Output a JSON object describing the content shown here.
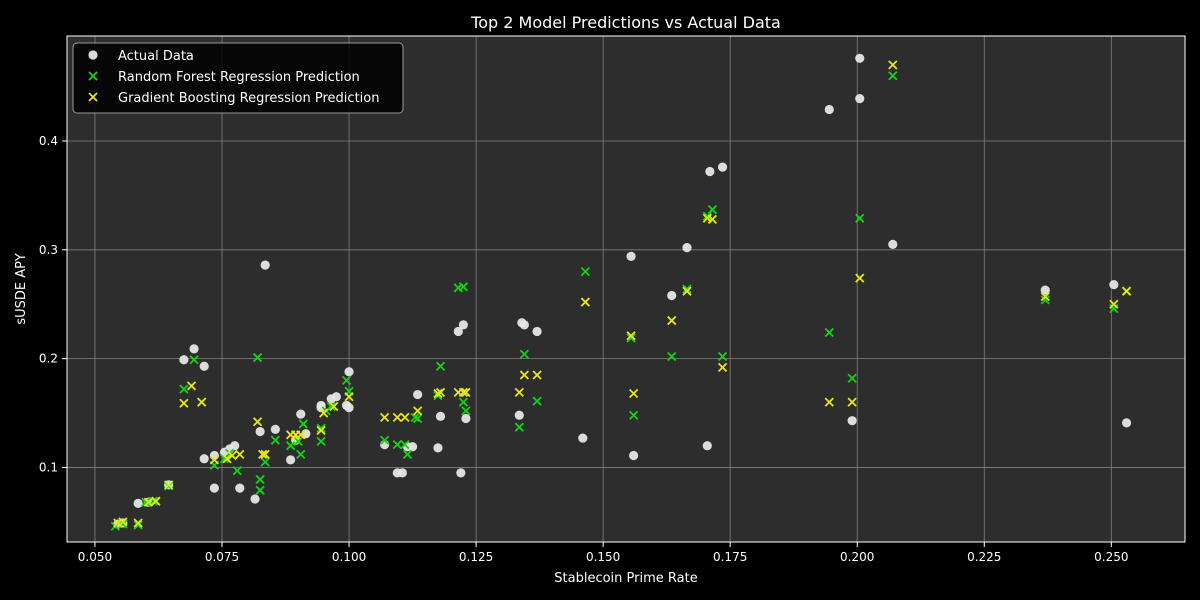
{
  "chart_data": {
    "type": "scatter",
    "title": "Top 2 Model Predictions vs Actual Data",
    "xlabel": "Stablecoin Prime Rate",
    "ylabel": "sUSDE APY",
    "xlim": [
      0.0445,
      0.2645
    ],
    "ylim": [
      0.0315,
      0.4965
    ],
    "xticks": [
      0.05,
      0.075,
      0.1,
      0.125,
      0.15,
      0.175,
      0.2,
      0.225,
      0.25
    ],
    "xtick_labels": [
      "0.050",
      "0.075",
      "0.100",
      "0.125",
      "0.150",
      "0.175",
      "0.200",
      "0.225",
      "0.250"
    ],
    "yticks": [
      0.1,
      0.2,
      0.3,
      0.4
    ],
    "ytick_labels": [
      "0.1",
      "0.2",
      "0.3",
      "0.4"
    ],
    "grid": true,
    "legend_position": "top-left",
    "colors": {
      "background": "#000000",
      "plot_background": "#2d2d2d",
      "grid": "#8a8a8a",
      "text": "#ffffff"
    },
    "series": [
      {
        "name": "Actual Data",
        "marker": "circle",
        "color": "#e6e6e6",
        "points": [
          [
            0.0545,
            0.048
          ],
          [
            0.0555,
            0.049
          ],
          [
            0.0585,
            0.067
          ],
          [
            0.0605,
            0.068
          ],
          [
            0.0645,
            0.084
          ],
          [
            0.0675,
            0.199
          ],
          [
            0.0695,
            0.209
          ],
          [
            0.0715,
            0.193
          ],
          [
            0.0715,
            0.108
          ],
          [
            0.0735,
            0.111
          ],
          [
            0.0735,
            0.081
          ],
          [
            0.0755,
            0.114
          ],
          [
            0.0765,
            0.117
          ],
          [
            0.0775,
            0.12
          ],
          [
            0.0785,
            0.081
          ],
          [
            0.0815,
            0.071
          ],
          [
            0.0825,
            0.133
          ],
          [
            0.0835,
            0.286
          ],
          [
            0.0855,
            0.135
          ],
          [
            0.0885,
            0.107
          ],
          [
            0.0895,
            0.125
          ],
          [
            0.0905,
            0.149
          ],
          [
            0.0915,
            0.131
          ],
          [
            0.0945,
            0.157
          ],
          [
            0.0945,
            0.155
          ],
          [
            0.0965,
            0.163
          ],
          [
            0.0975,
            0.165
          ],
          [
            0.0995,
            0.157
          ],
          [
            0.1,
            0.188
          ],
          [
            0.1,
            0.155
          ],
          [
            0.107,
            0.121
          ],
          [
            0.1095,
            0.095
          ],
          [
            0.1105,
            0.095
          ],
          [
            0.1115,
            0.119
          ],
          [
            0.1125,
            0.119
          ],
          [
            0.1135,
            0.167
          ],
          [
            0.1175,
            0.118
          ],
          [
            0.118,
            0.147
          ],
          [
            0.1215,
            0.225
          ],
          [
            0.122,
            0.095
          ],
          [
            0.1225,
            0.231
          ],
          [
            0.123,
            0.145
          ],
          [
            0.1335,
            0.148
          ],
          [
            0.134,
            0.233
          ],
          [
            0.1345,
            0.231
          ],
          [
            0.137,
            0.225
          ],
          [
            0.146,
            0.127
          ],
          [
            0.1555,
            0.294
          ],
          [
            0.156,
            0.111
          ],
          [
            0.1635,
            0.258
          ],
          [
            0.1665,
            0.302
          ],
          [
            0.1705,
            0.12
          ],
          [
            0.171,
            0.372
          ],
          [
            0.1735,
            0.376
          ],
          [
            0.1945,
            0.429
          ],
          [
            0.199,
            0.143
          ],
          [
            0.2005,
            0.476
          ],
          [
            0.2005,
            0.439
          ],
          [
            0.207,
            0.305
          ],
          [
            0.237,
            0.263
          ],
          [
            0.2505,
            0.268
          ],
          [
            0.253,
            0.141
          ]
        ]
      },
      {
        "name": "Random Forest Regression Prediction",
        "marker": "x",
        "color": "#14d214",
        "points": [
          [
            0.054,
            0.046
          ],
          [
            0.0555,
            0.048
          ],
          [
            0.0585,
            0.047
          ],
          [
            0.06,
            0.068
          ],
          [
            0.0615,
            0.069
          ],
          [
            0.0645,
            0.083
          ],
          [
            0.0675,
            0.172
          ],
          [
            0.0695,
            0.199
          ],
          [
            0.071,
            0.16
          ],
          [
            0.0735,
            0.102
          ],
          [
            0.0755,
            0.108
          ],
          [
            0.0765,
            0.113
          ],
          [
            0.078,
            0.097
          ],
          [
            0.082,
            0.201
          ],
          [
            0.0825,
            0.089
          ],
          [
            0.0825,
            0.079
          ],
          [
            0.0835,
            0.105
          ],
          [
            0.0855,
            0.125
          ],
          [
            0.0885,
            0.12
          ],
          [
            0.09,
            0.124
          ],
          [
            0.0905,
            0.112
          ],
          [
            0.091,
            0.14
          ],
          [
            0.0945,
            0.124
          ],
          [
            0.0945,
            0.136
          ],
          [
            0.0955,
            0.152
          ],
          [
            0.0965,
            0.156
          ],
          [
            0.0995,
            0.18
          ],
          [
            0.1,
            0.17
          ],
          [
            0.107,
            0.125
          ],
          [
            0.1095,
            0.121
          ],
          [
            0.111,
            0.121
          ],
          [
            0.1115,
            0.112
          ],
          [
            0.113,
            0.146
          ],
          [
            0.1135,
            0.145
          ],
          [
            0.1175,
            0.166
          ],
          [
            0.118,
            0.193
          ],
          [
            0.1215,
            0.265
          ],
          [
            0.1225,
            0.266
          ],
          [
            0.1225,
            0.16
          ],
          [
            0.123,
            0.152
          ],
          [
            0.1335,
            0.137
          ],
          [
            0.1345,
            0.204
          ],
          [
            0.137,
            0.161
          ],
          [
            0.1465,
            0.28
          ],
          [
            0.1555,
            0.219
          ],
          [
            0.156,
            0.148
          ],
          [
            0.1635,
            0.202
          ],
          [
            0.1665,
            0.264
          ],
          [
            0.1705,
            0.331
          ],
          [
            0.1715,
            0.337
          ],
          [
            0.1735,
            0.202
          ],
          [
            0.1945,
            0.224
          ],
          [
            0.199,
            0.182
          ],
          [
            0.2005,
            0.329
          ],
          [
            0.207,
            0.46
          ],
          [
            0.237,
            0.254
          ],
          [
            0.2505,
            0.246
          ],
          [
            0.253,
            0.262
          ]
        ]
      },
      {
        "name": "Gradient Boosting Regression Prediction",
        "marker": "x",
        "color": "#e6e61e",
        "points": [
          [
            0.0545,
            0.049
          ],
          [
            0.0555,
            0.05
          ],
          [
            0.0585,
            0.049
          ],
          [
            0.0605,
            0.068
          ],
          [
            0.062,
            0.069
          ],
          [
            0.0645,
            0.084
          ],
          [
            0.0675,
            0.159
          ],
          [
            0.069,
            0.175
          ],
          [
            0.071,
            0.16
          ],
          [
            0.0735,
            0.107
          ],
          [
            0.076,
            0.108
          ],
          [
            0.077,
            0.111
          ],
          [
            0.0785,
            0.112
          ],
          [
            0.082,
            0.142
          ],
          [
            0.083,
            0.112
          ],
          [
            0.0835,
            0.112
          ],
          [
            0.0885,
            0.13
          ],
          [
            0.0895,
            0.13
          ],
          [
            0.0905,
            0.13
          ],
          [
            0.0945,
            0.134
          ],
          [
            0.095,
            0.15
          ],
          [
            0.097,
            0.156
          ],
          [
            0.1,
            0.165
          ],
          [
            0.107,
            0.146
          ],
          [
            0.1095,
            0.146
          ],
          [
            0.111,
            0.146
          ],
          [
            0.1135,
            0.152
          ],
          [
            0.1175,
            0.168
          ],
          [
            0.118,
            0.169
          ],
          [
            0.1215,
            0.169
          ],
          [
            0.1225,
            0.169
          ],
          [
            0.123,
            0.169
          ],
          [
            0.1335,
            0.169
          ],
          [
            0.1345,
            0.185
          ],
          [
            0.137,
            0.185
          ],
          [
            0.1465,
            0.252
          ],
          [
            0.1555,
            0.221
          ],
          [
            0.156,
            0.168
          ],
          [
            0.1635,
            0.235
          ],
          [
            0.1665,
            0.262
          ],
          [
            0.1705,
            0.329
          ],
          [
            0.1715,
            0.328
          ],
          [
            0.1735,
            0.192
          ],
          [
            0.1945,
            0.16
          ],
          [
            0.199,
            0.16
          ],
          [
            0.2005,
            0.274
          ],
          [
            0.207,
            0.47
          ],
          [
            0.237,
            0.257
          ],
          [
            0.2505,
            0.25
          ],
          [
            0.253,
            0.262
          ]
        ]
      }
    ]
  }
}
